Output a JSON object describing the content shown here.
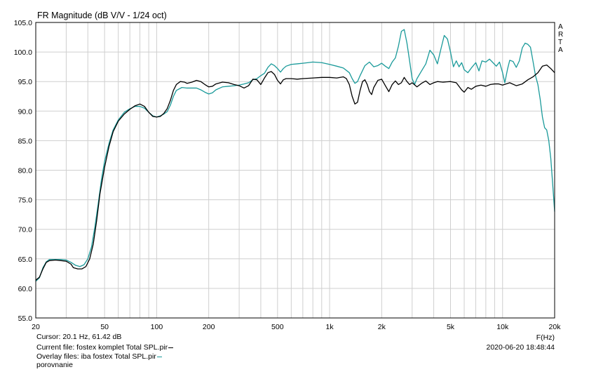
{
  "chart_data": {
    "type": "line",
    "title": "FR Magnitude (dB V/V - 1/24 oct)",
    "xlabel": "F(Hz)",
    "ylabel": "",
    "xscale": "log",
    "xlim": [
      20,
      20000
    ],
    "ylim": [
      55,
      105
    ],
    "grid": true,
    "x_ticks": [
      {
        "value": 20,
        "label": "20"
      },
      {
        "value": 50,
        "label": "50"
      },
      {
        "value": 100,
        "label": "100"
      },
      {
        "value": 200,
        "label": "200"
      },
      {
        "value": 500,
        "label": "500"
      },
      {
        "value": 1000,
        "label": "1k"
      },
      {
        "value": 2000,
        "label": "2k"
      },
      {
        "value": 5000,
        "label": "5k"
      },
      {
        "value": 10000,
        "label": "10k"
      },
      {
        "value": 20000,
        "label": "20k"
      }
    ],
    "y_ticks": [
      "55.0",
      "60.0",
      "65.0",
      "70.0",
      "75.0",
      "80.0",
      "85.0",
      "90.0",
      "95.0",
      "100.0",
      "105.0"
    ],
    "brand_letters": [
      "A",
      "R",
      "T",
      "A"
    ],
    "series": [
      {
        "color": "#000000",
        "points": [
          [
            20,
            61.4
          ],
          [
            21,
            61.9
          ],
          [
            22,
            63.3
          ],
          [
            23,
            64.4
          ],
          [
            24,
            64.7
          ],
          [
            26,
            64.8
          ],
          [
            28,
            64.7
          ],
          [
            30,
            64.6
          ],
          [
            32,
            64.1
          ],
          [
            33,
            63.5
          ],
          [
            35,
            63.3
          ],
          [
            37,
            63.3
          ],
          [
            39,
            63.7
          ],
          [
            41,
            65
          ],
          [
            43,
            67.5
          ],
          [
            45,
            71.5
          ],
          [
            47,
            76
          ],
          [
            50,
            80.5
          ],
          [
            53,
            84
          ],
          [
            56,
            86.5
          ],
          [
            60,
            88.3
          ],
          [
            65,
            89.5
          ],
          [
            70,
            90.3
          ],
          [
            75,
            90.9
          ],
          [
            80,
            91.2
          ],
          [
            85,
            90.8
          ],
          [
            90,
            89.8
          ],
          [
            95,
            89.1
          ],
          [
            100,
            89
          ],
          [
            105,
            89.1
          ],
          [
            110,
            89.6
          ],
          [
            115,
            90.4
          ],
          [
            120,
            91.8
          ],
          [
            125,
            93.5
          ],
          [
            130,
            94.5
          ],
          [
            137,
            95
          ],
          [
            145,
            94.9
          ],
          [
            150,
            94.7
          ],
          [
            160,
            94.9
          ],
          [
            170,
            95.2
          ],
          [
            180,
            95
          ],
          [
            190,
            94.5
          ],
          [
            200,
            94.1
          ],
          [
            210,
            94.2
          ],
          [
            220,
            94.6
          ],
          [
            240,
            94.9
          ],
          [
            260,
            94.8
          ],
          [
            280,
            94.5
          ],
          [
            300,
            94.3
          ],
          [
            320,
            93.9
          ],
          [
            340,
            94.3
          ],
          [
            360,
            95.4
          ],
          [
            380,
            95.3
          ],
          [
            400,
            94.5
          ],
          [
            420,
            95.6
          ],
          [
            440,
            96.5
          ],
          [
            460,
            96.7
          ],
          [
            480,
            96.2
          ],
          [
            500,
            95.2
          ],
          [
            520,
            94.6
          ],
          [
            540,
            95.3
          ],
          [
            560,
            95.5
          ],
          [
            600,
            95.5
          ],
          [
            650,
            95.4
          ],
          [
            700,
            95.5
          ],
          [
            800,
            95.6
          ],
          [
            900,
            95.7
          ],
          [
            1000,
            95.7
          ],
          [
            1100,
            95.6
          ],
          [
            1200,
            95.8
          ],
          [
            1250,
            95.5
          ],
          [
            1300,
            94.5
          ],
          [
            1350,
            92.5
          ],
          [
            1400,
            91.2
          ],
          [
            1450,
            91.5
          ],
          [
            1500,
            93.5
          ],
          [
            1550,
            95
          ],
          [
            1600,
            95.3
          ],
          [
            1650,
            94.5
          ],
          [
            1700,
            93.3
          ],
          [
            1750,
            92.8
          ],
          [
            1800,
            94
          ],
          [
            1900,
            95.2
          ],
          [
            2000,
            95.4
          ],
          [
            2100,
            94.3
          ],
          [
            2200,
            93.3
          ],
          [
            2300,
            94.5
          ],
          [
            2400,
            95.1
          ],
          [
            2500,
            94.5
          ],
          [
            2600,
            94.8
          ],
          [
            2700,
            95.7
          ],
          [
            2800,
            95
          ],
          [
            2900,
            94.5
          ],
          [
            3000,
            94.8
          ],
          [
            3200,
            94.1
          ],
          [
            3400,
            94.7
          ],
          [
            3600,
            95.1
          ],
          [
            3800,
            94.5
          ],
          [
            4000,
            94.8
          ],
          [
            4200,
            95
          ],
          [
            4500,
            94.9
          ],
          [
            5000,
            95
          ],
          [
            5400,
            94.8
          ],
          [
            5800,
            93.6
          ],
          [
            6000,
            93.2
          ],
          [
            6300,
            94
          ],
          [
            6600,
            93.7
          ],
          [
            7000,
            94.2
          ],
          [
            7500,
            94.4
          ],
          [
            8000,
            94.2
          ],
          [
            8500,
            94.5
          ],
          [
            9000,
            94.6
          ],
          [
            9500,
            94.6
          ],
          [
            10000,
            94.4
          ],
          [
            11000,
            94.8
          ],
          [
            12000,
            94.3
          ],
          [
            13000,
            94.6
          ],
          [
            14000,
            95.3
          ],
          [
            15000,
            95.8
          ],
          [
            16000,
            96.5
          ],
          [
            17000,
            97.6
          ],
          [
            18000,
            97.8
          ],
          [
            19000,
            97.2
          ],
          [
            20000,
            96.5
          ]
        ]
      },
      {
        "color": "#1a9a9a",
        "points": [
          [
            20,
            61.2
          ],
          [
            21,
            61.8
          ],
          [
            22,
            63.5
          ],
          [
            23,
            64.5
          ],
          [
            24,
            64.9
          ],
          [
            26,
            64.9
          ],
          [
            28,
            64.9
          ],
          [
            30,
            64.8
          ],
          [
            32,
            64.4
          ],
          [
            34,
            63.9
          ],
          [
            36,
            63.7
          ],
          [
            38,
            64
          ],
          [
            40,
            65
          ],
          [
            42,
            67
          ],
          [
            44,
            70.5
          ],
          [
            46,
            74.5
          ],
          [
            48,
            78.5
          ],
          [
            50,
            81.5
          ],
          [
            53,
            84.5
          ],
          [
            56,
            86.8
          ],
          [
            60,
            88.5
          ],
          [
            65,
            89.8
          ],
          [
            70,
            90.4
          ],
          [
            75,
            90.8
          ],
          [
            80,
            90.8
          ],
          [
            85,
            90.5
          ],
          [
            90,
            89.8
          ],
          [
            95,
            89.2
          ],
          [
            100,
            89
          ],
          [
            105,
            89.2
          ],
          [
            110,
            89.5
          ],
          [
            115,
            89.9
          ],
          [
            120,
            91
          ],
          [
            125,
            92.5
          ],
          [
            130,
            93.5
          ],
          [
            140,
            94
          ],
          [
            150,
            93.9
          ],
          [
            170,
            93.9
          ],
          [
            180,
            93.6
          ],
          [
            190,
            93.2
          ],
          [
            200,
            92.9
          ],
          [
            210,
            93.1
          ],
          [
            220,
            93.6
          ],
          [
            240,
            94.1
          ],
          [
            260,
            94.2
          ],
          [
            280,
            94.3
          ],
          [
            300,
            94.4
          ],
          [
            320,
            94.6
          ],
          [
            340,
            94.8
          ],
          [
            360,
            95.3
          ],
          [
            380,
            95.5
          ],
          [
            400,
            96
          ],
          [
            420,
            96.4
          ],
          [
            440,
            97.4
          ],
          [
            460,
            98
          ],
          [
            480,
            97.7
          ],
          [
            500,
            97.2
          ],
          [
            520,
            96.6
          ],
          [
            540,
            97.2
          ],
          [
            560,
            97.6
          ],
          [
            600,
            97.9
          ],
          [
            650,
            98
          ],
          [
            700,
            98.1
          ],
          [
            750,
            98.2
          ],
          [
            800,
            98.3
          ],
          [
            900,
            98.2
          ],
          [
            1000,
            97.9
          ],
          [
            1100,
            97.6
          ],
          [
            1200,
            97.3
          ],
          [
            1300,
            96.5
          ],
          [
            1350,
            95.5
          ],
          [
            1400,
            94.7
          ],
          [
            1450,
            95
          ],
          [
            1500,
            96
          ],
          [
            1600,
            97.7
          ],
          [
            1700,
            98.3
          ],
          [
            1800,
            97.5
          ],
          [
            1900,
            97.7
          ],
          [
            2000,
            98.1
          ],
          [
            2100,
            97.6
          ],
          [
            2200,
            97.2
          ],
          [
            2300,
            98.3
          ],
          [
            2400,
            99
          ],
          [
            2500,
            101
          ],
          [
            2600,
            103.5
          ],
          [
            2700,
            103.8
          ],
          [
            2800,
            101.5
          ],
          [
            2900,
            98.5
          ],
          [
            3000,
            95.5
          ],
          [
            3100,
            94.5
          ],
          [
            3200,
            95.5
          ],
          [
            3400,
            96.8
          ],
          [
            3600,
            98
          ],
          [
            3800,
            100.3
          ],
          [
            4000,
            99.5
          ],
          [
            4200,
            98
          ],
          [
            4400,
            100.5
          ],
          [
            4600,
            102.8
          ],
          [
            4800,
            102.2
          ],
          [
            5000,
            100
          ],
          [
            5200,
            97.5
          ],
          [
            5400,
            98.5
          ],
          [
            5600,
            97.5
          ],
          [
            5800,
            98.2
          ],
          [
            6000,
            97
          ],
          [
            6300,
            96.5
          ],
          [
            6600,
            97.3
          ],
          [
            7000,
            98.2
          ],
          [
            7300,
            96.8
          ],
          [
            7600,
            98.5
          ],
          [
            8000,
            98.3
          ],
          [
            8400,
            98.8
          ],
          [
            8800,
            98.2
          ],
          [
            9200,
            97.6
          ],
          [
            9600,
            98.3
          ],
          [
            10000,
            96.5
          ],
          [
            10300,
            94.8
          ],
          [
            10700,
            97.2
          ],
          [
            11000,
            98.6
          ],
          [
            11500,
            98.4
          ],
          [
            12000,
            97.4
          ],
          [
            12500,
            98.5
          ],
          [
            13000,
            100.7
          ],
          [
            13500,
            101.5
          ],
          [
            14000,
            101.3
          ],
          [
            14500,
            100.8
          ],
          [
            15000,
            98.4
          ],
          [
            15500,
            96
          ],
          [
            16000,
            94.5
          ],
          [
            16500,
            92
          ],
          [
            17000,
            89
          ],
          [
            17500,
            87.2
          ],
          [
            18000,
            86.8
          ],
          [
            18500,
            85
          ],
          [
            19000,
            82
          ],
          [
            19500,
            77.5
          ],
          [
            20000,
            73
          ]
        ]
      }
    ]
  },
  "footer": {
    "cursor": "Cursor: 20.1 Hz, 61.42 dB",
    "current_file": "Current file: fostex komplet Total SPL.pir",
    "overlay_files": "Overlay files: iba fostex Total SPL.pir",
    "overlay_extra": "porovnanie",
    "timestamp": "2020-06-20  18:48:44"
  }
}
